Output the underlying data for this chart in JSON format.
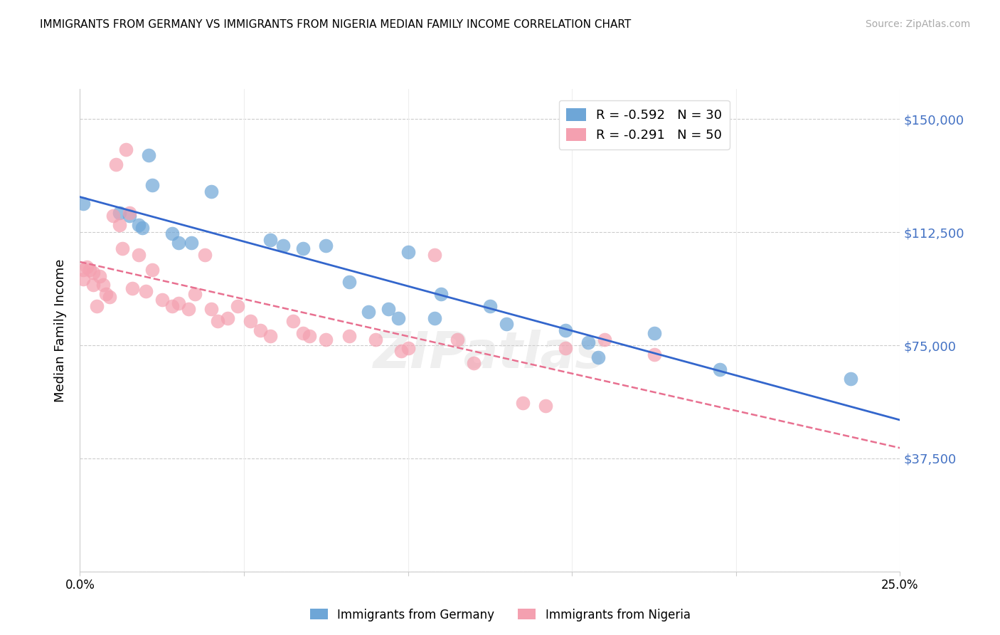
{
  "title": "IMMIGRANTS FROM GERMANY VS IMMIGRANTS FROM NIGERIA MEDIAN FAMILY INCOME CORRELATION CHART",
  "source": "Source: ZipAtlas.com",
  "ylabel": "Median Family Income",
  "yticks": [
    0,
    37500,
    75000,
    112500,
    150000
  ],
  "ytick_labels": [
    "",
    "$37,500",
    "$75,000",
    "$112,500",
    "$150,000"
  ],
  "xmin": 0.0,
  "xmax": 0.25,
  "ymin": 0,
  "ymax": 160000,
  "germany_R": "-0.592",
  "germany_N": "30",
  "nigeria_R": "-0.291",
  "nigeria_N": "50",
  "germany_color": "#6ea6d7",
  "nigeria_color": "#f4a0b0",
  "germany_line_color": "#3366cc",
  "nigeria_line_color": "#e87090",
  "watermark": "ZIPatlas",
  "germany_points": [
    [
      0.001,
      122000
    ],
    [
      0.012,
      119000
    ],
    [
      0.015,
      118000
    ],
    [
      0.018,
      115000
    ],
    [
      0.019,
      114000
    ],
    [
      0.021,
      138000
    ],
    [
      0.022,
      128000
    ],
    [
      0.028,
      112000
    ],
    [
      0.03,
      109000
    ],
    [
      0.034,
      109000
    ],
    [
      0.04,
      126000
    ],
    [
      0.058,
      110000
    ],
    [
      0.062,
      108000
    ],
    [
      0.068,
      107000
    ],
    [
      0.075,
      108000
    ],
    [
      0.082,
      96000
    ],
    [
      0.088,
      86000
    ],
    [
      0.094,
      87000
    ],
    [
      0.097,
      84000
    ],
    [
      0.1,
      106000
    ],
    [
      0.108,
      84000
    ],
    [
      0.11,
      92000
    ],
    [
      0.125,
      88000
    ],
    [
      0.13,
      82000
    ],
    [
      0.148,
      80000
    ],
    [
      0.155,
      76000
    ],
    [
      0.158,
      71000
    ],
    [
      0.175,
      79000
    ],
    [
      0.195,
      67000
    ],
    [
      0.235,
      64000
    ]
  ],
  "nigeria_points": [
    [
      0.001,
      100000
    ],
    [
      0.001,
      97000
    ],
    [
      0.002,
      101000
    ],
    [
      0.003,
      100000
    ],
    [
      0.004,
      99000
    ],
    [
      0.004,
      95000
    ],
    [
      0.005,
      88000
    ],
    [
      0.006,
      98000
    ],
    [
      0.007,
      95000
    ],
    [
      0.008,
      92000
    ],
    [
      0.009,
      91000
    ],
    [
      0.01,
      118000
    ],
    [
      0.011,
      135000
    ],
    [
      0.012,
      115000
    ],
    [
      0.013,
      107000
    ],
    [
      0.014,
      140000
    ],
    [
      0.015,
      119000
    ],
    [
      0.016,
      94000
    ],
    [
      0.018,
      105000
    ],
    [
      0.02,
      93000
    ],
    [
      0.022,
      100000
    ],
    [
      0.025,
      90000
    ],
    [
      0.028,
      88000
    ],
    [
      0.03,
      89000
    ],
    [
      0.033,
      87000
    ],
    [
      0.035,
      92000
    ],
    [
      0.038,
      105000
    ],
    [
      0.04,
      87000
    ],
    [
      0.042,
      83000
    ],
    [
      0.045,
      84000
    ],
    [
      0.048,
      88000
    ],
    [
      0.052,
      83000
    ],
    [
      0.055,
      80000
    ],
    [
      0.058,
      78000
    ],
    [
      0.065,
      83000
    ],
    [
      0.068,
      79000
    ],
    [
      0.07,
      78000
    ],
    [
      0.075,
      77000
    ],
    [
      0.082,
      78000
    ],
    [
      0.09,
      77000
    ],
    [
      0.098,
      73000
    ],
    [
      0.1,
      74000
    ],
    [
      0.108,
      105000
    ],
    [
      0.115,
      77000
    ],
    [
      0.12,
      69000
    ],
    [
      0.135,
      56000
    ],
    [
      0.142,
      55000
    ],
    [
      0.148,
      74000
    ],
    [
      0.16,
      77000
    ],
    [
      0.175,
      72000
    ]
  ]
}
